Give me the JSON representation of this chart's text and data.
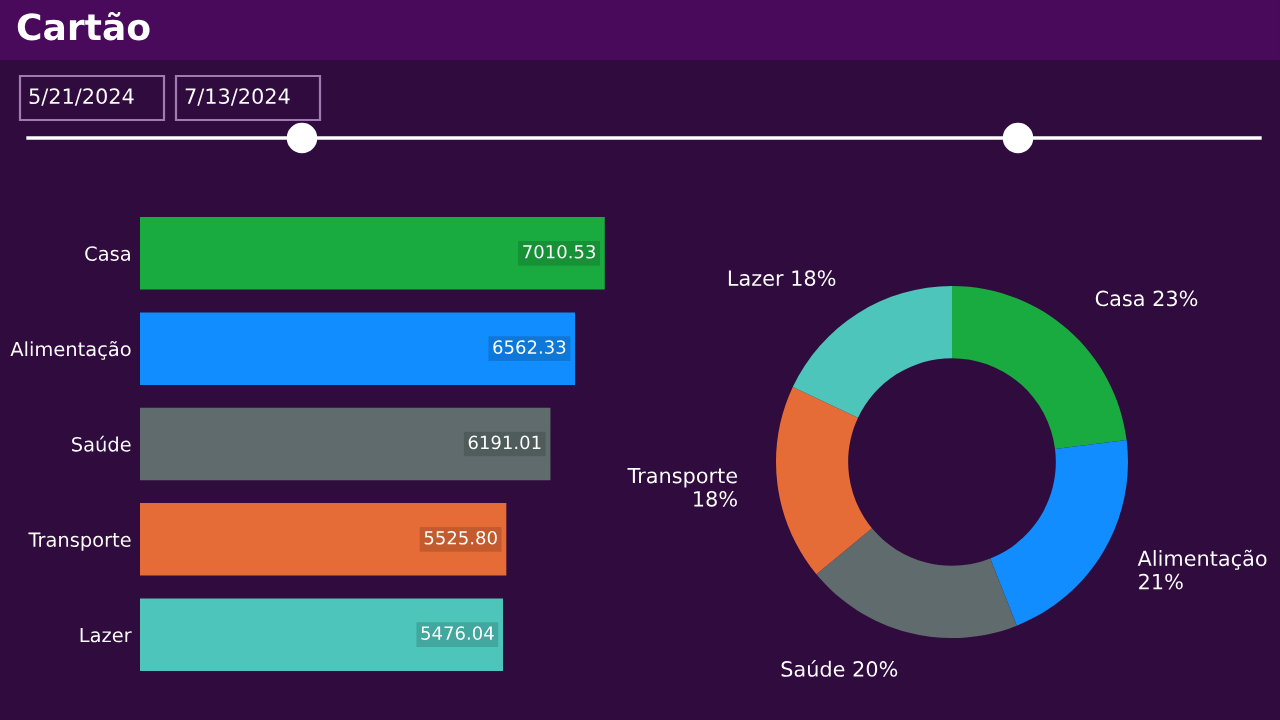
{
  "chart_data": [
    {
      "type": "bar",
      "orientation": "horizontal",
      "title": "Cartão",
      "annotations": [
        "5/21/2024",
        "7/13/2024"
      ],
      "categories": [
        "Casa",
        "Alimentação",
        "Saúde",
        "Transporte",
        "Lazer"
      ],
      "values": [
        7010.53,
        6562.33,
        6191.01,
        5525.8,
        5476.04
      ],
      "value_labels": [
        "7010.53",
        "6562.33",
        "6191.01",
        "5525.80",
        "5476.04"
      ],
      "colors": [
        "#1aab40",
        "#118dff",
        "#5f6b6d",
        "#e66c37",
        "#4ec5bb"
      ],
      "tick_labels": "y",
      "grid": false,
      "legend": false
    },
    {
      "type": "donut",
      "categories": [
        "Casa",
        "Alimentação",
        "Saúde",
        "Transporte",
        "Lazer"
      ],
      "values": [
        23,
        21,
        20,
        18,
        18
      ],
      "value_labels": [
        "23%",
        "21%",
        "20%",
        "18%",
        "18%"
      ],
      "colors": [
        "#1aab40",
        "#118dff",
        "#5f6b6d",
        "#e66c37",
        "#4ec5bb"
      ],
      "legend": false
    }
  ]
}
